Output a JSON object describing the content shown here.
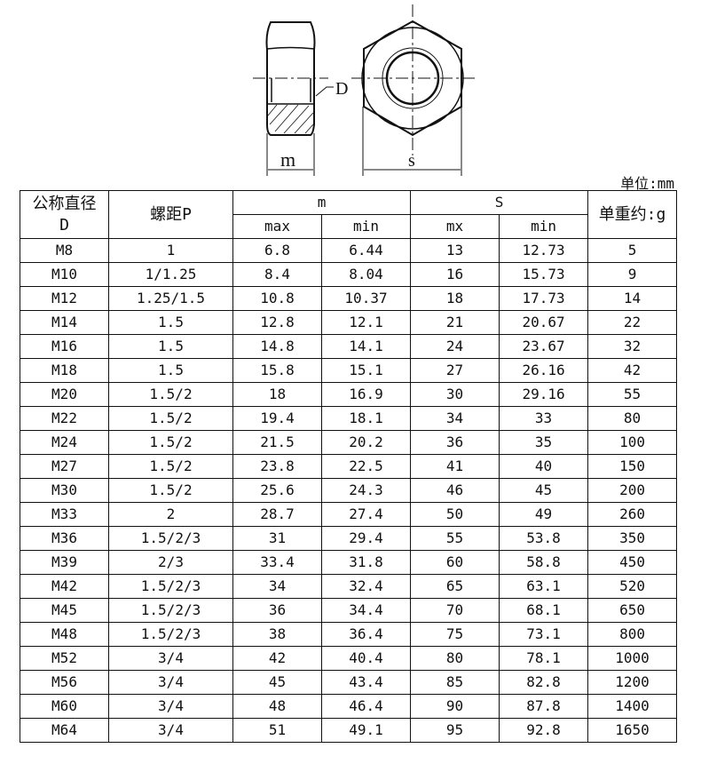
{
  "drawing": {
    "labels": {
      "d": "D",
      "m": "m",
      "s": "s"
    }
  },
  "unit": "单位:mm",
  "header": {
    "diameter": "公称直径",
    "diameter_sub": "D",
    "pitch": "螺距P",
    "m": "m",
    "s": "S",
    "weight": "单重约:g",
    "m_max": "max",
    "m_min": "min",
    "s_max": "mx",
    "s_min": "min"
  },
  "rows": [
    [
      "M8",
      "1",
      "6.8",
      "6.44",
      "13",
      "12.73",
      "5"
    ],
    [
      "M10",
      "1/1.25",
      "8.4",
      "8.04",
      "16",
      "15.73",
      "9"
    ],
    [
      "M12",
      "1.25/1.5",
      "10.8",
      "10.37",
      "18",
      "17.73",
      "14"
    ],
    [
      "M14",
      "1.5",
      "12.8",
      "12.1",
      "21",
      "20.67",
      "22"
    ],
    [
      "M16",
      "1.5",
      "14.8",
      "14.1",
      "24",
      "23.67",
      "32"
    ],
    [
      "M18",
      "1.5",
      "15.8",
      "15.1",
      "27",
      "26.16",
      "42"
    ],
    [
      "M20",
      "1.5/2",
      "18",
      "16.9",
      "30",
      "29.16",
      "55"
    ],
    [
      "M22",
      "1.5/2",
      "19.4",
      "18.1",
      "34",
      "33",
      "80"
    ],
    [
      "M24",
      "1.5/2",
      "21.5",
      "20.2",
      "36",
      "35",
      "100"
    ],
    [
      "M27",
      "1.5/2",
      "23.8",
      "22.5",
      "41",
      "40",
      "150"
    ],
    [
      "M30",
      "1.5/2",
      "25.6",
      "24.3",
      "46",
      "45",
      "200"
    ],
    [
      "M33",
      "2",
      "28.7",
      "27.4",
      "50",
      "49",
      "260"
    ],
    [
      "M36",
      "1.5/2/3",
      "31",
      "29.4",
      "55",
      "53.8",
      "350"
    ],
    [
      "M39",
      "2/3",
      "33.4",
      "31.8",
      "60",
      "58.8",
      "450"
    ],
    [
      "M42",
      "1.5/2/3",
      "34",
      "32.4",
      "65",
      "63.1",
      "520"
    ],
    [
      "M45",
      "1.5/2/3",
      "36",
      "34.4",
      "70",
      "68.1",
      "650"
    ],
    [
      "M48",
      "1.5/2/3",
      "38",
      "36.4",
      "75",
      "73.1",
      "800"
    ],
    [
      "M52",
      "3/4",
      "42",
      "40.4",
      "80",
      "78.1",
      "1000"
    ],
    [
      "M56",
      "3/4",
      "45",
      "43.4",
      "85",
      "82.8",
      "1200"
    ],
    [
      "M60",
      "3/4",
      "48",
      "46.4",
      "90",
      "87.8",
      "1400"
    ],
    [
      "M64",
      "3/4",
      "51",
      "49.1",
      "95",
      "92.8",
      "1650"
    ]
  ]
}
